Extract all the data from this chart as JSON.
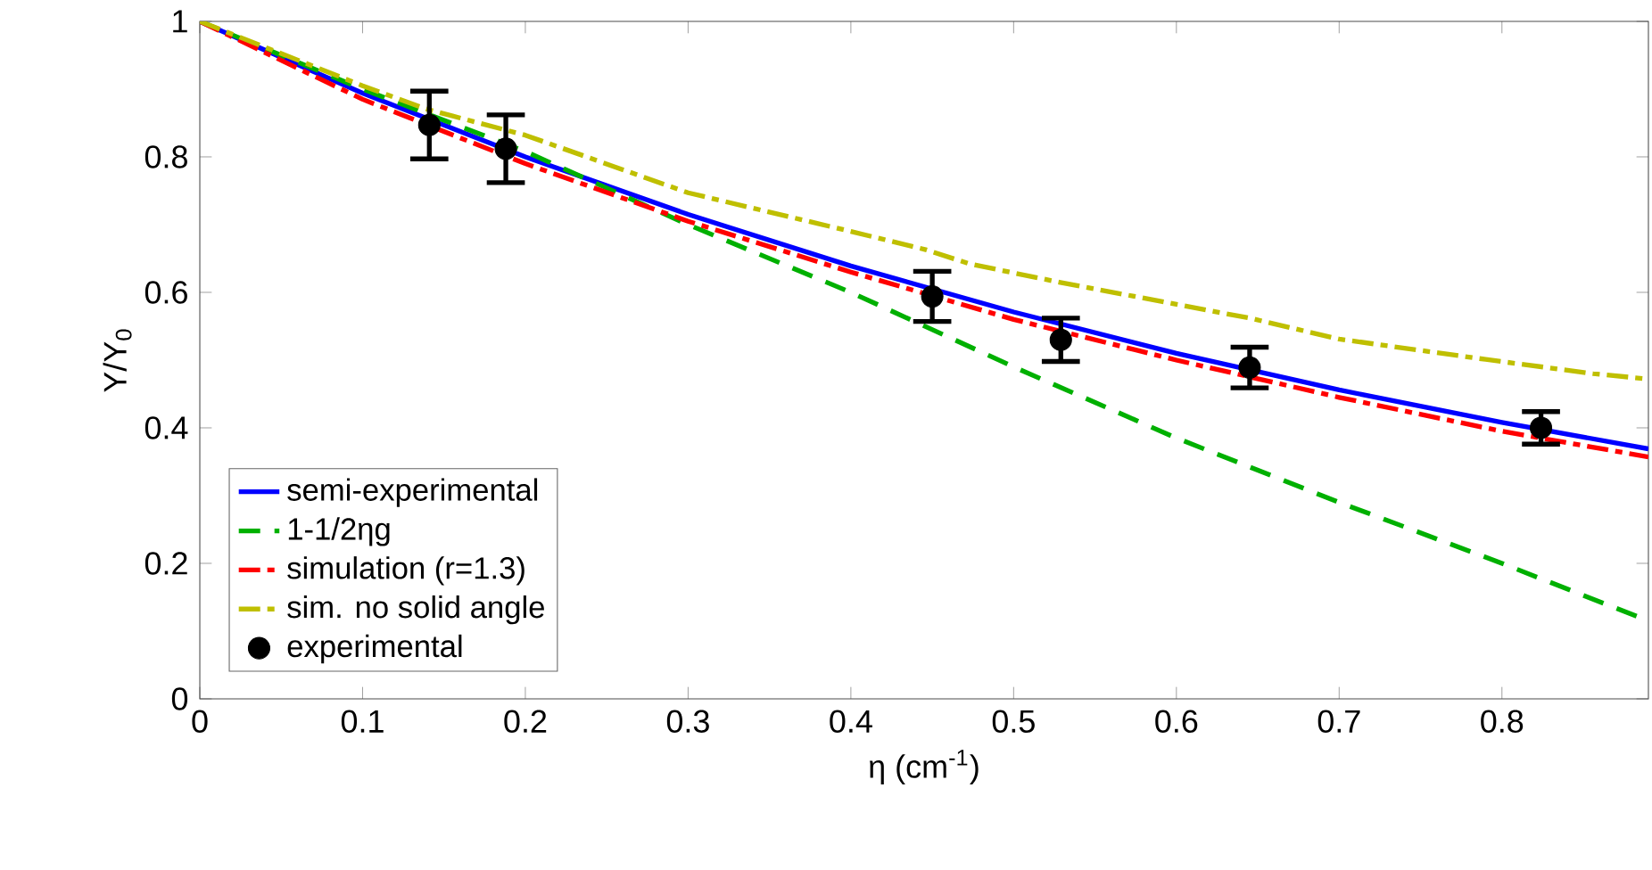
{
  "chart_data": {
    "type": "line",
    "xlabel": "η (cm$^{-1}$)",
    "ylabel": "Y/Y$_{0}$",
    "xlim": [
      0,
      0.89
    ],
    "ylim": [
      0,
      1
    ],
    "xticks": [
      0,
      0.1,
      0.2,
      0.3,
      0.4,
      0.5,
      0.6,
      0.7,
      0.8
    ],
    "yticks": [
      0,
      0.2,
      0.4,
      0.6,
      0.8,
      1
    ],
    "legend": "bottom left",
    "grid": false,
    "series": [
      {
        "name": "semi-experimental",
        "color": "#0000ff",
        "line_style": "solid",
        "marker": "none",
        "x": [
          0,
          0.1,
          0.2,
          0.3,
          0.4,
          0.5,
          0.6,
          0.7,
          0.8,
          0.89
        ],
        "values": [
          1,
          0.894,
          0.8,
          0.715,
          0.639,
          0.571,
          0.51,
          0.456,
          0.408,
          0.369
        ]
      },
      {
        "name": "1-1/2ηg",
        "color": "#00b000",
        "line_style": "dashed",
        "marker": "none",
        "x": [
          0,
          0.1,
          0.2,
          0.3,
          0.4,
          0.5,
          0.6,
          0.7,
          0.8,
          0.89
        ],
        "values": [
          1,
          0.9,
          0.808,
          0.7,
          0.6,
          0.49,
          0.385,
          0.29,
          0.2,
          0.115
        ]
      },
      {
        "name": "simulation (r=1.3)",
        "color": "#ff0000",
        "line_style": "dashdot",
        "marker": "none",
        "x": [
          0,
          0.1,
          0.2,
          0.3,
          0.4,
          0.5,
          0.6,
          0.7,
          0.8,
          0.89
        ],
        "values": [
          1,
          0.885,
          0.79,
          0.705,
          0.63,
          0.56,
          0.5,
          0.445,
          0.395,
          0.357
        ]
      },
      {
        "name": "sim. no solid angle",
        "color": "#bfbf00",
        "line_style": "dashdot",
        "marker": "none",
        "x": [
          0,
          0.1,
          0.14,
          0.2,
          0.3,
          0.4,
          0.446,
          0.473,
          0.528,
          0.645,
          0.7,
          0.79,
          0.856,
          0.89
        ],
        "values": [
          1,
          0.905,
          0.87,
          0.832,
          0.747,
          0.69,
          0.663,
          0.642,
          0.615,
          0.562,
          0.531,
          0.501,
          0.48,
          0.472
        ]
      },
      {
        "name": "experimental",
        "type": "scatter",
        "color": "#000000",
        "marker": "circle",
        "x": [
          0.141,
          0.188,
          0.45,
          0.529,
          0.645,
          0.824
        ],
        "values": [
          0.847,
          0.812,
          0.594,
          0.53,
          0.489,
          0.4
        ],
        "errors": [
          0.05,
          0.05,
          0.037,
          0.032,
          0.03,
          0.024
        ]
      }
    ]
  }
}
